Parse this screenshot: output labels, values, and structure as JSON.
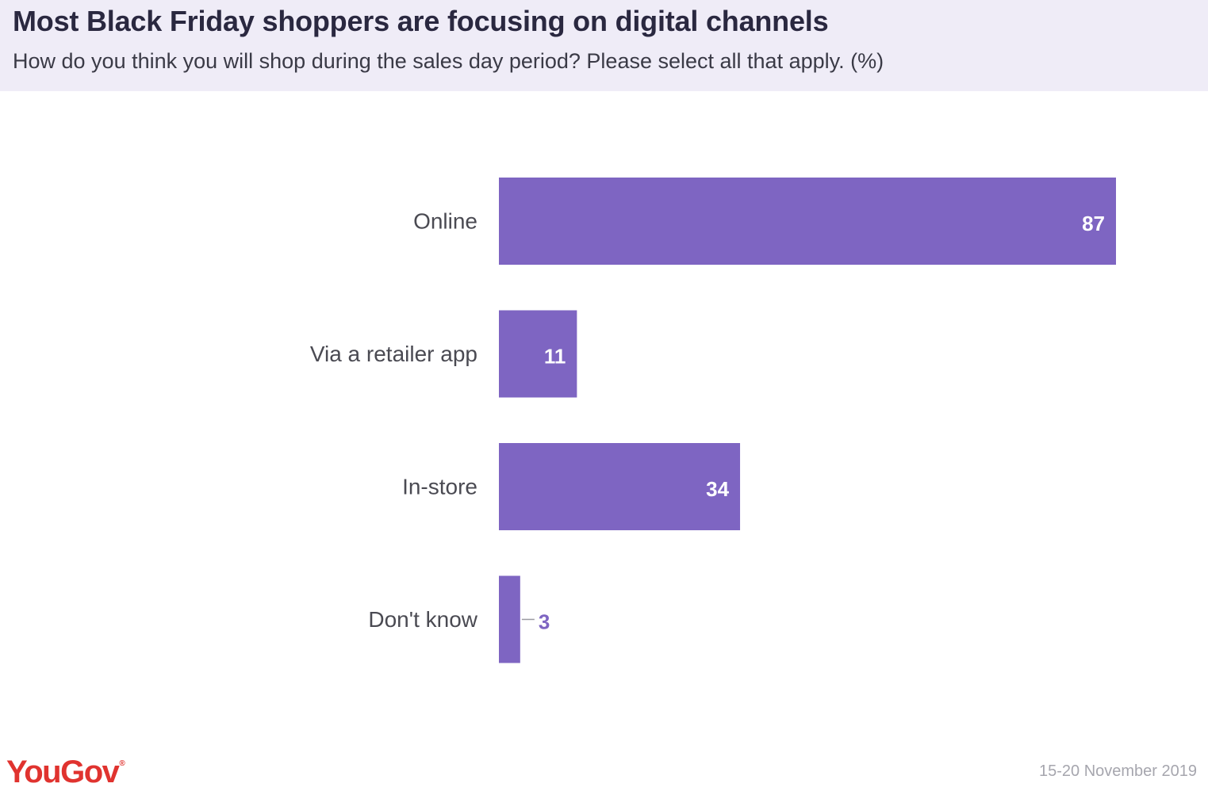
{
  "header": {
    "title": "Most Black Friday shoppers are focusing on digital channels",
    "subtitle": "How do you think you will shop during the sales day period? Please select all that apply. (%)"
  },
  "chart_data": {
    "type": "bar",
    "orientation": "horizontal",
    "categories": [
      "Online",
      "Via a retailer app",
      "In-store",
      "Don't know"
    ],
    "values": [
      87,
      11,
      34,
      3
    ],
    "title": "",
    "xlabel": "",
    "ylabel": "",
    "xlim": [
      0,
      100
    ],
    "grid": false,
    "legend": "none",
    "bar_color": "#7e65c2",
    "value_label_inside_color": "#ffffff",
    "value_label_outside_color": "#7e65c2"
  },
  "footer": {
    "logo": "YouGov",
    "logo_mark": "®",
    "logo_color": "#e0332f",
    "date": "15-20 November 2019"
  }
}
